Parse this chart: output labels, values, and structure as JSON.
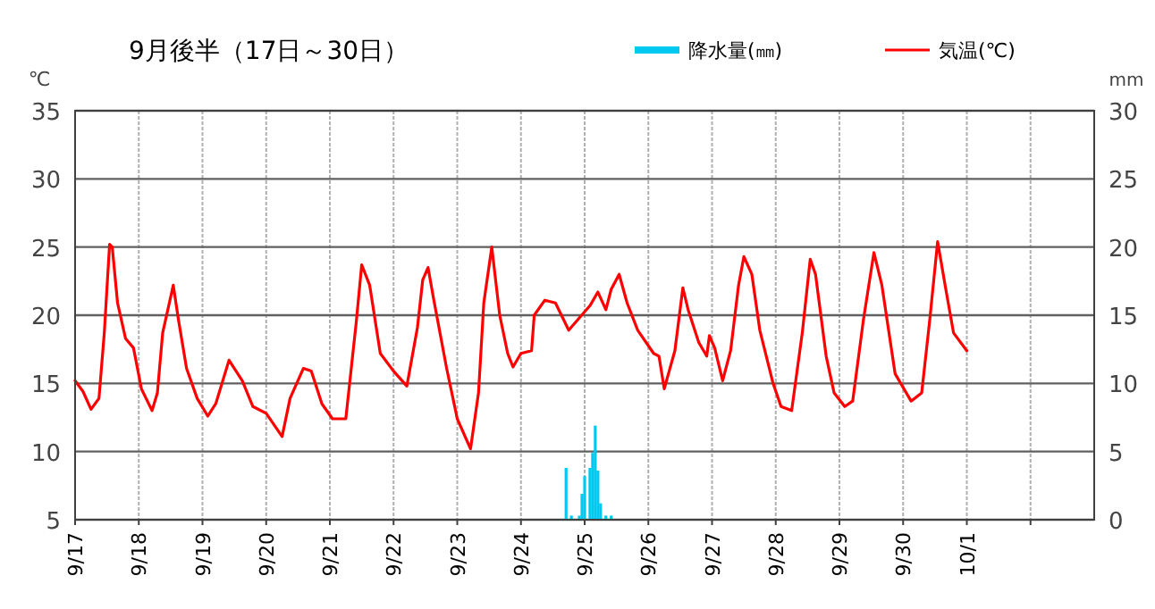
{
  "chart_data": {
    "type": "line",
    "title": "9月後半（17日～30日）",
    "ylabel": "℃",
    "y2label": "mm",
    "xlim": [
      "--09-17",
      "--10-03"
    ],
    "xticks": [
      {
        "value": "--09-17",
        "label": "9/17"
      },
      {
        "value": "--09-18",
        "label": "9/18"
      },
      {
        "value": "--09-19",
        "label": "9/19"
      },
      {
        "value": "--09-20",
        "label": "9/20"
      },
      {
        "value": "--09-21",
        "label": "9/21"
      },
      {
        "value": "--09-22",
        "label": "9/22"
      },
      {
        "value": "--09-23",
        "label": "9/23"
      },
      {
        "value": "--09-24",
        "label": "9/24"
      },
      {
        "value": "--09-25",
        "label": "9/25"
      },
      {
        "value": "--09-26",
        "label": "9/26"
      },
      {
        "value": "--09-27",
        "label": "9/27"
      },
      {
        "value": "--09-28",
        "label": "9/28"
      },
      {
        "value": "--09-29",
        "label": "9/29"
      },
      {
        "value": "--09-30",
        "label": "9/30"
      },
      {
        "value": "--10-01",
        "label": "10/1"
      },
      {
        "value": "--10-02",
        "label": null
      }
    ],
    "ylim": [
      5,
      35
    ],
    "yticks": [
      5,
      10,
      15,
      20,
      25,
      30,
      35
    ],
    "y2lim": [
      0,
      30
    ],
    "y2ticks": [
      0,
      5,
      10,
      15,
      20,
      25,
      30
    ],
    "grid": true,
    "legend": "top right",
    "series": [
      {
        "name": "降水量(㎜)",
        "type": "bar",
        "axis": "y2",
        "color": "#00c8f0",
        "x": [
          "--09-24T17:00",
          "--09-24T19:00",
          "--09-24T22:00",
          "--09-24T23:00",
          "--09-25T00:00",
          "--09-25T02:00",
          "--09-25T03:00",
          "--09-25T04:00",
          "--09-25T05:00",
          "--09-25T06:00",
          "--09-25T08:00",
          "--09-25T10:00"
        ],
        "values": [
          3.8,
          0.3,
          0.3,
          1.9,
          3.2,
          3.8,
          4.9,
          6.9,
          3.6,
          1.2,
          0.3,
          0.3
        ]
      },
      {
        "name": "気温(℃)",
        "color": "#ff0000",
        "x": [
          "--09-17T00:00",
          "--09-17T03:00",
          "--09-17T06:00",
          "--09-17T09:00",
          "--09-17T11:00",
          "--09-17T13:00",
          "--09-17T14:00",
          "--09-17T16:00",
          "--09-17T19:00",
          "--09-17T22:00",
          "--09-18T01:00",
          "--09-18T05:00",
          "--09-18T07:00",
          "--09-18T09:00",
          "--09-18T13:00",
          "--09-18T15:00",
          "--09-18T18:00",
          "--09-18T22:00",
          "--09-19T02:00",
          "--09-19T05:00",
          "--09-19T10:00",
          "--09-19T12:00",
          "--09-19T15:00",
          "--09-19T19:00",
          "--09-20T00:00",
          "--09-20T06:00",
          "--09-20T09:00",
          "--09-20T14:00",
          "--09-20T17:00",
          "--09-20T21:00",
          "--09-21T01:00",
          "--09-21T06:00",
          "--09-21T10:00",
          "--09-21T12:00",
          "--09-21T15:00",
          "--09-21T19:00",
          "--09-22T00:00",
          "--09-22T05:00",
          "--09-22T09:00",
          "--09-22T11:00",
          "--09-22T13:00",
          "--09-22T15:00",
          "--09-22T20:00",
          "--09-23T00:00",
          "--09-23T05:00",
          "--09-23T08:00",
          "--09-23T10:00",
          "--09-23T13:00",
          "--09-23T16:00",
          "--09-23T19:00",
          "--09-23T21:00",
          "--09-24T00:00",
          "--09-24T04:00",
          "--09-24T05:00",
          "--09-24T09:00",
          "--09-24T13:00",
          "--09-24T18:00",
          "--09-24T22:00",
          "--09-25T02:00",
          "--09-25T05:00",
          "--09-25T08:00",
          "--09-25T10:00",
          "--09-25T13:00",
          "--09-25T16:00",
          "--09-25T20:00",
          "--09-26T02:00",
          "--09-26T04:00",
          "--09-26T06:00",
          "--09-26T10:00",
          "--09-26T13:00",
          "--09-26T15:00",
          "--09-26T19:00",
          "--09-26T22:00",
          "--09-26T23:00",
          "--09-27T01:00",
          "--09-27T04:00",
          "--09-27T07:00",
          "--09-27T10:00",
          "--09-27T12:00",
          "--09-27T15:00",
          "--09-27T18:00",
          "--09-27T23:00",
          "--09-28T02:00",
          "--09-28T06:00",
          "--09-28T10:00",
          "--09-28T13:00",
          "--09-28T15:00",
          "--09-28T19:00",
          "--09-28T22:00",
          "--09-29T02:00",
          "--09-29T05:00",
          "--09-29T09:00",
          "--09-29T13:00",
          "--09-29T16:00",
          "--09-29T21:00",
          "--09-30T03:00",
          "--09-30T07:00",
          "--09-30T10:00",
          "--09-30T13:00",
          "--09-30T16:00",
          "--09-30T19:00",
          "--10-01T00:00"
        ],
        "values": [
          15.2,
          14.4,
          13.1,
          13.9,
          18.7,
          25.2,
          25.0,
          20.9,
          18.3,
          17.6,
          14.6,
          13.0,
          14.3,
          18.7,
          22.2,
          19.6,
          16.1,
          13.9,
          12.6,
          13.5,
          16.7,
          16.1,
          15.2,
          13.3,
          12.8,
          11.1,
          13.9,
          16.1,
          15.9,
          13.5,
          12.4,
          12.4,
          19.6,
          23.7,
          22.2,
          17.2,
          15.9,
          14.8,
          19.1,
          22.6,
          23.5,
          21.3,
          16.1,
          12.4,
          10.2,
          14.3,
          20.9,
          25.0,
          20.0,
          17.2,
          16.2,
          17.2,
          17.4,
          20.0,
          21.1,
          20.9,
          18.9,
          19.8,
          20.7,
          21.7,
          20.4,
          21.9,
          23.0,
          20.9,
          18.9,
          17.2,
          17.0,
          14.6,
          17.4,
          22.0,
          20.4,
          18.0,
          17.0,
          18.5,
          17.6,
          15.2,
          17.4,
          22.2,
          24.3,
          23.0,
          18.9,
          15.0,
          13.3,
          13.0,
          18.7,
          24.1,
          23.0,
          17.0,
          14.3,
          13.3,
          13.7,
          19.6,
          24.6,
          22.2,
          15.7,
          13.7,
          14.3,
          19.6,
          25.4,
          22.0,
          18.7,
          17.4
        ]
      }
    ]
  }
}
